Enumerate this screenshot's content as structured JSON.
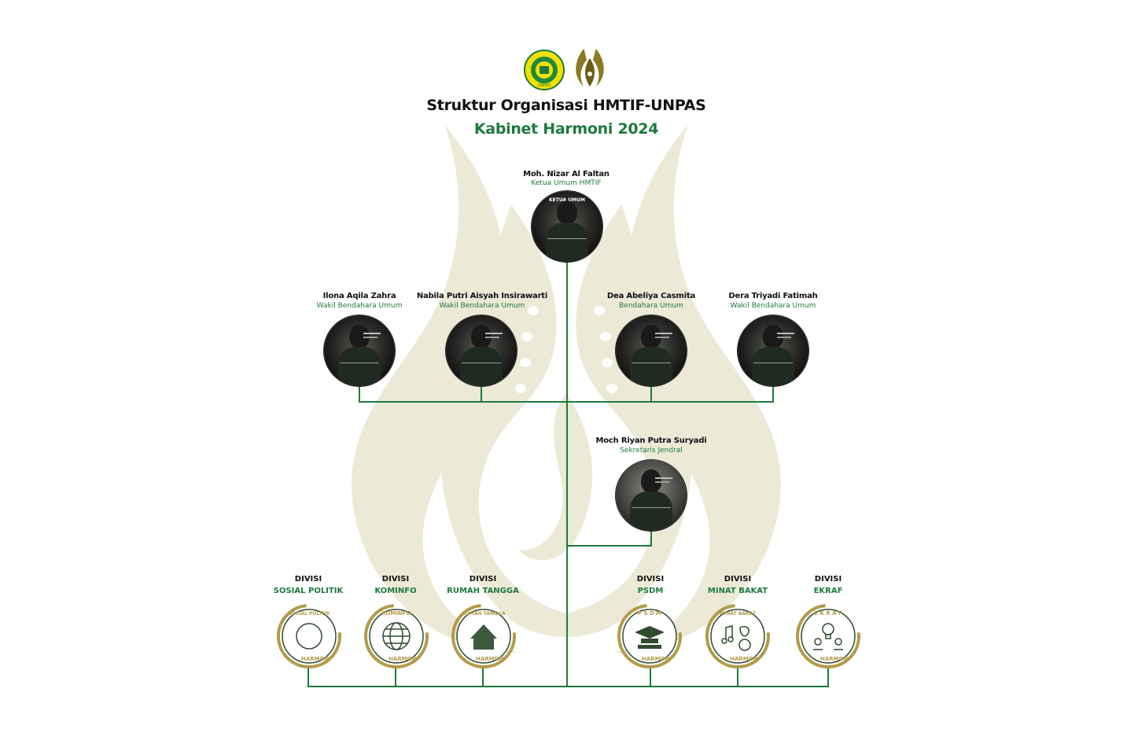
{
  "header": {
    "title": "Struktur Organisasi HMTIF-UNPAS",
    "subtitle": "Kabinet Harmoni 2024"
  },
  "logos": {
    "left_seal_text": "UNPAS",
    "right_logo": "flame-logo"
  },
  "leader": {
    "name": "Moh. Nizar Al Faltan",
    "role": "Ketua Umum HMTIF",
    "photo_caption": "KETUA UMUM"
  },
  "officers": [
    {
      "name": "Ilona Aqila Zahra",
      "role": "Wakil Bendahara Umum"
    },
    {
      "name": "Nabila Putri Aisyah Insirawarti",
      "role": "Wakil Bendahara Umum"
    },
    {
      "name": "Dea Abeliya Casmita",
      "role": "Bendahara Umum"
    },
    {
      "name": "Dera Triyadi Fatimah",
      "role": "Wakil Bendahara Umum"
    }
  ],
  "secretary": {
    "name": "Moch Riyan Putra Suryadi",
    "role": "Sekretaris Jendral"
  },
  "divisions": [
    {
      "label": "DIVISI",
      "name": "SOSIAL POLITIK",
      "badge_text": "SOSIAL POLITIK",
      "badge_footer": "HARMONI",
      "icon": "meeting-table-icon"
    },
    {
      "label": "DIVISI",
      "name": "KOMINFO",
      "badge_text": "KOMINFO",
      "badge_footer": "HARMONI",
      "icon": "globe-icon"
    },
    {
      "label": "DIVISI",
      "name": "RUMAH TANGGA",
      "badge_text": "RUMAH TANGGA",
      "badge_footer": "HARMONI",
      "icon": "house-icon"
    },
    {
      "label": "DIVISI",
      "name": "PSDM",
      "badge_text": "P S D M",
      "badge_footer": "HARMONI",
      "icon": "graduation-cap-icon"
    },
    {
      "label": "DIVISI",
      "name": "MINAT BAKAT",
      "badge_text": "MINAT BAKAT",
      "badge_footer": "HARMONI",
      "icon": "music-sports-icon"
    },
    {
      "label": "DIVISI",
      "name": "EKRAF",
      "badge_text": "E K R A F",
      "badge_footer": "HARMONI",
      "icon": "idea-money-icon"
    }
  ],
  "colors": {
    "accent_green": "#1e7a3e",
    "connector_green": "#1e7a3e",
    "watermark_beige": "#e6e2c9",
    "badge_gold": "#b39b4a",
    "badge_dark_green": "#2f4a2f"
  }
}
